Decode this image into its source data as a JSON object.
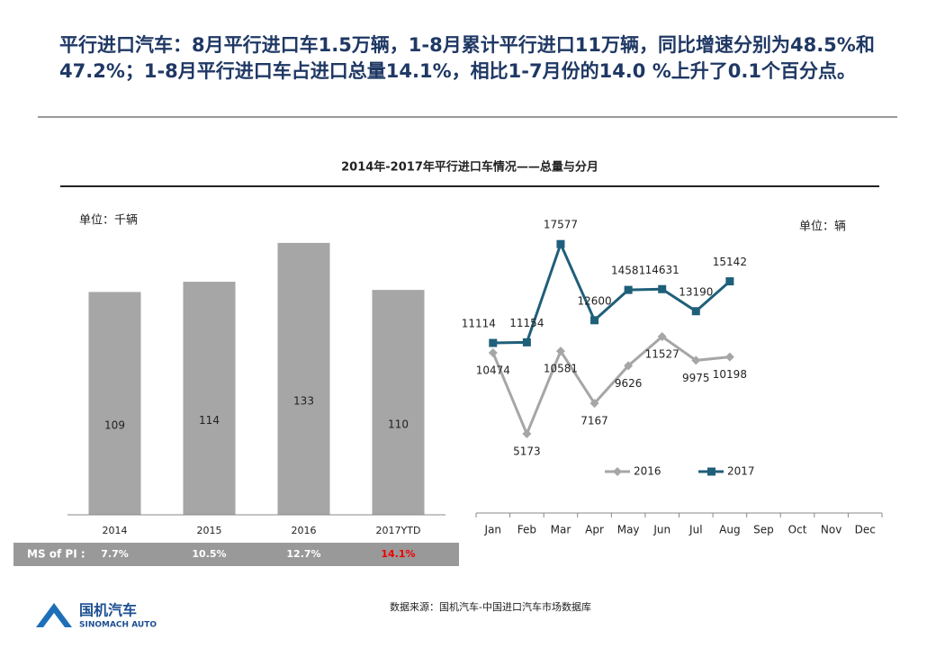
{
  "headline": "平行进口汽车：8月平行进口车1.5万辆，1-8月累计平行进口11万辆，同比增速分别为48.5%和47.2%；1-8月平行进口车占进口总量14.1%，相比1-7月份的14.0 %上升了0.1个百分点。",
  "section_title": "2014年-2017年平行进口车情况——总量与分月",
  "chart_data": [
    {
      "type": "bar",
      "unit": "单位：千辆",
      "categories": [
        "2014",
        "2015",
        "2016",
        "2017YTD"
      ],
      "values": [
        109,
        114,
        133,
        110
      ],
      "color": "#a6a6a6",
      "ylim": [
        0,
        140
      ]
    },
    {
      "type": "line",
      "unit": "单位：辆",
      "categories": [
        "Jan",
        "Feb",
        "Mar",
        "Apr",
        "May",
        "Jun",
        "Jul",
        "Aug",
        "Sep",
        "Oct",
        "Nov",
        "Dec"
      ],
      "series": [
        {
          "name": "2016",
          "color": "#a6a6a6",
          "marker": "diamond",
          "values": [
            10474,
            5173,
            10581,
            7167,
            9626,
            11527,
            9975,
            10198,
            null,
            null,
            null,
            null
          ]
        },
        {
          "name": "2017",
          "color": "#1f5f7a",
          "marker": "square",
          "values": [
            11114,
            11154,
            17577,
            12600,
            14581,
            14631,
            13190,
            15142,
            null,
            null,
            null,
            null
          ]
        }
      ],
      "ylim": [
        0,
        20000
      ],
      "legend": "bottom"
    }
  ],
  "ms_row": {
    "label": "MS of PI :",
    "values": [
      "7.7%",
      "10.5%",
      "12.7%",
      "14.1%"
    ]
  },
  "source": "数据来源：国机汽车-中国进口汽车市场数据库",
  "logo": {
    "name": "国机汽车",
    "sub": "SINOMACH AUTO"
  }
}
